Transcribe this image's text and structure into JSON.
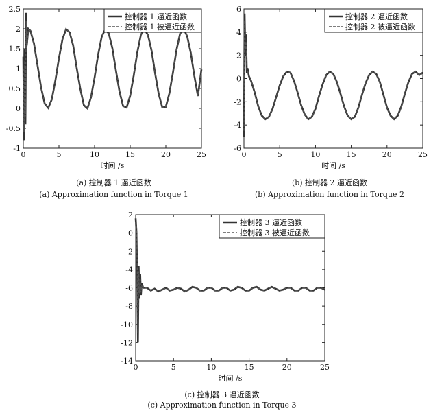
{
  "panels": [
    {
      "caption_cn": "(a) 控制器 1 逼近函数",
      "caption_en": "(a) Approximation function in Torque 1"
    },
    {
      "caption_cn": "(b) 控制器 2 逼近函数",
      "caption_en": "(b) Approximation function in Torque 2"
    },
    {
      "caption_cn": "(c) 控制器 3 逼近函数",
      "caption_en": "(c) Approximation function in Torque 3"
    }
  ],
  "chart_data": [
    {
      "type": "line",
      "xlabel": "时间  /s",
      "ylabel": "",
      "xlim": [
        0,
        25
      ],
      "ylim": [
        -1,
        2.5
      ],
      "xticks": [
        "0",
        "5",
        "10",
        "15",
        "20",
        "25"
      ],
      "yticks": [
        "-1",
        "-0.5",
        "0",
        "0.5",
        "1",
        "1.5",
        "2",
        "2.5"
      ],
      "legend_position": "top-right",
      "series": [
        {
          "name": "控制器 1 逼近函数",
          "style": "solid",
          "color": "#333333",
          "x": [
            0.0,
            0.1,
            0.2,
            0.3,
            0.4,
            0.5,
            0.7,
            1.0,
            1.5,
            2.0,
            2.5,
            3.0,
            3.5,
            4.0,
            4.5,
            5.0,
            5.5,
            6.0,
            6.5,
            7.0,
            7.5,
            8.0,
            8.5,
            9.0,
            9.5,
            10.0,
            10.5,
            11.0,
            11.5,
            12.0,
            12.5,
            13.0,
            13.5,
            14.0,
            14.5,
            15.0,
            15.5,
            16.0,
            16.5,
            17.0,
            17.5,
            18.0,
            18.5,
            19.0,
            19.5,
            20.0,
            20.5,
            21.0,
            21.5,
            22.0,
            22.5,
            23.0,
            23.5,
            24.0,
            24.5,
            25.0
          ],
          "values": [
            1.3,
            -0.8,
            1.5,
            -0.4,
            2.4,
            1.6,
            2.0,
            1.95,
            1.63,
            1.08,
            0.52,
            0.12,
            0.01,
            0.23,
            0.7,
            1.26,
            1.74,
            1.99,
            1.91,
            1.58,
            1.01,
            0.49,
            0.08,
            0.0,
            0.28,
            0.77,
            1.35,
            1.8,
            1.99,
            1.88,
            1.51,
            0.95,
            0.42,
            0.06,
            0.02,
            0.32,
            0.83,
            1.41,
            1.85,
            1.99,
            1.84,
            1.45,
            0.88,
            0.36,
            0.03,
            0.04,
            0.38,
            0.9,
            1.47,
            1.88,
            2.0,
            1.81,
            1.4,
            0.82,
            0.31,
            0.98
          ]
        },
        {
          "name": "控制器 1 被逼近函数",
          "style": "dashed",
          "color": "#555555",
          "x": [
            0.0,
            0.1,
            0.2,
            0.3,
            0.4,
            0.5,
            0.7,
            1.0,
            1.5,
            2.0,
            2.5,
            3.0,
            3.5,
            4.0,
            4.5,
            5.0,
            5.5,
            6.0,
            6.5,
            7.0,
            7.5,
            8.0,
            8.5,
            9.0,
            9.5,
            10.0,
            10.5,
            11.0,
            11.5,
            12.0,
            12.5,
            13.0,
            13.5,
            14.0,
            14.5,
            15.0,
            15.5,
            16.0,
            16.5,
            17.0,
            17.5,
            18.0,
            18.5,
            19.0,
            19.5,
            20.0,
            20.5,
            21.0,
            21.5,
            22.0,
            22.5,
            23.0,
            23.5,
            24.0,
            24.5,
            25.0
          ],
          "values": [
            1.0,
            -0.6,
            1.2,
            -0.2,
            2.2,
            1.5,
            1.98,
            1.95,
            1.63,
            1.08,
            0.52,
            0.12,
            0.01,
            0.23,
            0.7,
            1.26,
            1.74,
            1.99,
            1.91,
            1.58,
            1.01,
            0.49,
            0.08,
            0.0,
            0.28,
            0.77,
            1.35,
            1.8,
            1.99,
            1.88,
            1.51,
            0.95,
            0.42,
            0.06,
            0.02,
            0.32,
            0.83,
            1.41,
            1.85,
            1.99,
            1.84,
            1.45,
            0.88,
            0.36,
            0.03,
            0.04,
            0.38,
            0.9,
            1.47,
            1.88,
            2.0,
            1.81,
            1.4,
            0.82,
            0.31,
            0.98
          ]
        }
      ]
    },
    {
      "type": "line",
      "xlabel": "时间  /s",
      "ylabel": "",
      "xlim": [
        0,
        25
      ],
      "ylim": [
        -6,
        6
      ],
      "xticks": [
        "0",
        "5",
        "10",
        "15",
        "20",
        "25"
      ],
      "yticks": [
        "-6",
        "-4",
        "-2",
        "0",
        "2",
        "4",
        "6"
      ],
      "legend_position": "top-right",
      "series": [
        {
          "name": "控制器 2 逼近函数",
          "style": "solid",
          "color": "#333333",
          "x": [
            0.0,
            0.1,
            0.2,
            0.3,
            0.4,
            0.5,
            0.7,
            1.0,
            1.5,
            2.0,
            2.5,
            3.0,
            3.5,
            4.0,
            4.5,
            5.0,
            5.5,
            6.0,
            6.5,
            7.0,
            7.5,
            8.0,
            8.5,
            9.0,
            9.5,
            10.0,
            10.5,
            11.0,
            11.5,
            12.0,
            12.5,
            13.0,
            13.5,
            14.0,
            14.5,
            15.0,
            15.5,
            16.0,
            16.5,
            17.0,
            17.5,
            18.0,
            18.5,
            19.0,
            19.5,
            20.0,
            20.5,
            21.0,
            21.5,
            22.0,
            22.5,
            23.0,
            23.5,
            24.0,
            24.5,
            25.0
          ],
          "values": [
            -5.0,
            5.6,
            2.0,
            3.8,
            0.5,
            0.9,
            0.2,
            -0.2,
            -1.2,
            -2.4,
            -3.2,
            -3.5,
            -3.3,
            -2.6,
            -1.6,
            -0.6,
            0.2,
            0.6,
            0.5,
            -0.2,
            -1.2,
            -2.3,
            -3.1,
            -3.5,
            -3.3,
            -2.6,
            -1.5,
            -0.5,
            0.3,
            0.6,
            0.4,
            -0.3,
            -1.3,
            -2.4,
            -3.2,
            -3.5,
            -3.3,
            -2.5,
            -1.4,
            -0.4,
            0.3,
            0.6,
            0.4,
            -0.3,
            -1.4,
            -2.5,
            -3.2,
            -3.5,
            -3.2,
            -2.4,
            -1.3,
            -0.3,
            0.4,
            0.6,
            0.3,
            0.5
          ]
        },
        {
          "name": "控制器 2 被逼近函数",
          "style": "dashed",
          "color": "#555555",
          "x": [
            0.0,
            0.1,
            0.2,
            0.3,
            0.4,
            0.5,
            0.7,
            1.0,
            1.5,
            2.0,
            2.5,
            3.0,
            3.5,
            4.0,
            4.5,
            5.0,
            5.5,
            6.0,
            6.5,
            7.0,
            7.5,
            8.0,
            8.5,
            9.0,
            9.5,
            10.0,
            10.5,
            11.0,
            11.5,
            12.0,
            12.5,
            13.0,
            13.5,
            14.0,
            14.5,
            15.0,
            15.5,
            16.0,
            16.5,
            17.0,
            17.5,
            18.0,
            18.5,
            19.0,
            19.5,
            20.0,
            20.5,
            21.0,
            21.5,
            22.0,
            22.5,
            23.0,
            23.5,
            24.0,
            24.5,
            25.0
          ],
          "values": [
            -4.5,
            5.0,
            2.5,
            3.2,
            0.8,
            0.7,
            0.2,
            -0.2,
            -1.2,
            -2.4,
            -3.2,
            -3.5,
            -3.3,
            -2.6,
            -1.6,
            -0.6,
            0.2,
            0.6,
            0.5,
            -0.2,
            -1.2,
            -2.3,
            -3.1,
            -3.5,
            -3.3,
            -2.6,
            -1.5,
            -0.5,
            0.3,
            0.6,
            0.4,
            -0.3,
            -1.3,
            -2.4,
            -3.2,
            -3.5,
            -3.3,
            -2.5,
            -1.4,
            -0.4,
            0.3,
            0.6,
            0.4,
            -0.3,
            -1.4,
            -2.5,
            -3.2,
            -3.5,
            -3.2,
            -2.4,
            -1.3,
            -0.3,
            0.4,
            0.6,
            0.3,
            0.5
          ]
        }
      ]
    },
    {
      "type": "line",
      "xlabel": "时间  /s",
      "ylabel": "",
      "xlim": [
        0,
        25
      ],
      "ylim": [
        -14,
        2
      ],
      "xticks": [
        "0",
        "5",
        "10",
        "15",
        "20",
        "25"
      ],
      "yticks": [
        "-14",
        "-12",
        "-10",
        "-8",
        "-6",
        "-4",
        "-2",
        "0",
        "2"
      ],
      "legend_position": "top-right",
      "series": [
        {
          "name": "控制器 3 逼近函数",
          "style": "solid",
          "color": "#333333",
          "x": [
            0.0,
            0.1,
            0.2,
            0.3,
            0.4,
            0.5,
            0.6,
            0.7,
            0.8,
            1.0,
            1.5,
            2.0,
            2.5,
            3.0,
            3.5,
            4.0,
            4.5,
            5.0,
            5.5,
            6.0,
            6.5,
            7.0,
            7.5,
            8.0,
            8.5,
            9.0,
            9.5,
            10.0,
            10.5,
            11.0,
            11.5,
            12.0,
            12.5,
            13.0,
            13.5,
            14.0,
            14.5,
            15.0,
            15.5,
            16.0,
            16.5,
            17.0,
            17.5,
            18.0,
            18.5,
            19.0,
            19.5,
            20.0,
            20.5,
            21.0,
            21.5,
            22.0,
            22.5,
            23.0,
            23.5,
            24.0,
            24.5,
            25.0
          ],
          "values": [
            1.6,
            0.2,
            -4.0,
            -12.0,
            -3.6,
            -7.2,
            -4.5,
            -6.8,
            -5.5,
            -6.0,
            -6.0,
            -6.3,
            -6.1,
            -6.4,
            -6.2,
            -6.0,
            -6.3,
            -6.2,
            -6.0,
            -6.1,
            -6.4,
            -6.2,
            -5.9,
            -6.0,
            -6.3,
            -6.3,
            -6.0,
            -6.0,
            -6.3,
            -6.3,
            -6.0,
            -6.0,
            -6.3,
            -6.2,
            -5.9,
            -6.0,
            -6.3,
            -6.3,
            -6.0,
            -5.9,
            -6.2,
            -6.3,
            -6.1,
            -5.9,
            -6.1,
            -6.3,
            -6.2,
            -6.0,
            -6.0,
            -6.3,
            -6.3,
            -6.0,
            -6.0,
            -6.3,
            -6.3,
            -6.0,
            -6.0,
            -6.2
          ]
        },
        {
          "name": "控制器 3 被逼近函数",
          "style": "dashed",
          "color": "#555555",
          "x": [
            0.0,
            0.1,
            0.2,
            0.3,
            0.4,
            0.5,
            0.6,
            0.7,
            0.8,
            1.0,
            1.5,
            2.0,
            2.5,
            3.0,
            3.5,
            4.0,
            4.5,
            5.0,
            5.5,
            6.0,
            6.5,
            7.0,
            7.5,
            8.0,
            8.5,
            9.0,
            9.5,
            10.0,
            10.5,
            11.0,
            11.5,
            12.0,
            12.5,
            13.0,
            13.5,
            14.0,
            14.5,
            15.0,
            15.5,
            16.0,
            16.5,
            17.0,
            17.5,
            18.0,
            18.5,
            19.0,
            19.5,
            20.0,
            20.5,
            21.0,
            21.5,
            22.0,
            22.5,
            23.0,
            23.5,
            24.0,
            24.5,
            25.0
          ],
          "values": [
            1.2,
            0.8,
            -3.0,
            -11.0,
            -4.2,
            -6.6,
            -5.0,
            -6.5,
            -5.8,
            -6.0,
            -6.0,
            -6.3,
            -6.1,
            -6.4,
            -6.2,
            -6.0,
            -6.3,
            -6.2,
            -6.0,
            -6.1,
            -6.4,
            -6.2,
            -5.9,
            -6.0,
            -6.3,
            -6.3,
            -6.0,
            -6.0,
            -6.3,
            -6.3,
            -6.0,
            -6.0,
            -6.3,
            -6.2,
            -5.9,
            -6.0,
            -6.3,
            -6.3,
            -6.0,
            -5.9,
            -6.2,
            -6.3,
            -6.1,
            -5.9,
            -6.1,
            -6.3,
            -6.2,
            -6.0,
            -6.0,
            -6.3,
            -6.3,
            -6.0,
            -6.0,
            -6.3,
            -6.3,
            -6.0,
            -6.0,
            -6.2
          ]
        }
      ]
    }
  ]
}
